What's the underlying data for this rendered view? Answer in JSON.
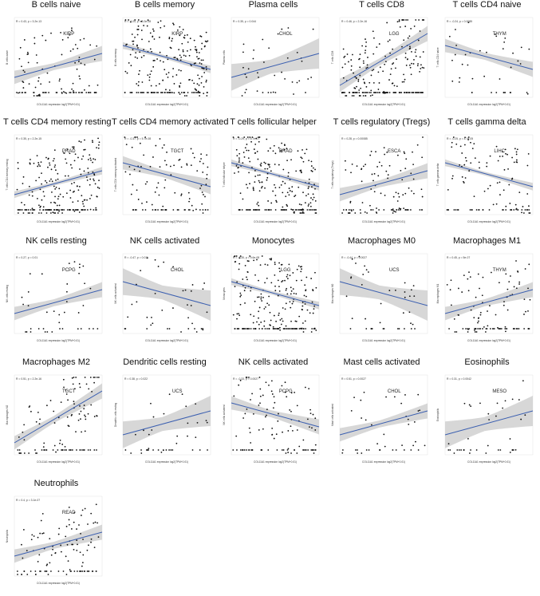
{
  "chart_data": [
    {
      "type": "scatter",
      "title": "B cells naive",
      "stat": "R = 0.43, p = 3.2e-13",
      "cancer": "KIRP",
      "xlabel": "COL11A1 expression log2(TPM+0.01)",
      "ylabel": "B cells naive",
      "slope": "pos",
      "band": "mid",
      "dots": "mid"
    },
    {
      "type": "scatter",
      "title": "B cells memory",
      "stat": "R = -0.20, p = 3.3e-08",
      "cancer": "KIRP",
      "xlabel": "COL11A1 expression log2(TPM+0.01)",
      "ylabel": "B cells memory",
      "slope": "neg",
      "band": "narrow",
      "dots": "many"
    },
    {
      "type": "scatter",
      "title": "Plasma cells",
      "stat": "R = 0.35, p = 0.044",
      "cancer": "CHOL",
      "xlabel": "COL11A1 expression log2(TPM+0.01)",
      "ylabel": "Plasma cells",
      "slope": "pos",
      "band": "wide",
      "dots": "few"
    },
    {
      "type": "scatter",
      "title": "T cells CD8",
      "stat": "R = 0.46, p = 2.2e-16",
      "cancer": "LGG",
      "xlabel": "COL11A1 expression log2(TPM+0.01)",
      "ylabel": "T cells CD8",
      "slope": "steep",
      "band": "mid",
      "dots": "many"
    },
    {
      "type": "scatter",
      "title": "T cells CD4 naive",
      "stat": "R = -0.24, p = 0.0085",
      "cancer": "THYM",
      "xlabel": "COL11A1 expression log2(TPM+0.01)",
      "ylabel": "T cells CD4 naive",
      "slope": "neg",
      "band": "mid",
      "dots": "few"
    },
    {
      "type": "scatter",
      "title": "T cells CD4 memory resting",
      "stat": "R = 0.35, p = 2.2e-15",
      "cancer": "PRAD",
      "xlabel": "COL11A1 expression log2(TPM+0.01)",
      "ylabel": "T cells CD4 memory resting",
      "slope": "pos",
      "band": "narrow",
      "dots": "many"
    },
    {
      "type": "scatter",
      "title": "T cells CD4 memory activated",
      "stat": "R = -0.37, p = 5.7e-08",
      "cancer": "TGCT",
      "xlabel": "COL11A1 expression log2(TPM+0.01)",
      "ylabel": "T cells CD4 memory activated",
      "slope": "neg",
      "band": "mid",
      "dots": "mid"
    },
    {
      "type": "scatter",
      "title": "T cells follicular helper",
      "stat": "R = -0.29, p = 5.7e-07",
      "cancer": "PRAD",
      "xlabel": "COL11A1 expression log2(TPM+0.01)",
      "ylabel": "T cells follicular helper",
      "slope": "neg",
      "band": "narrow",
      "dots": "many"
    },
    {
      "type": "scatter",
      "title": "T cells regulatory (Tregs)",
      "stat": "R = 0.28, p = 0.00085",
      "cancer": "ESCA",
      "xlabel": "COL11A1 expression log2(TPM+0.01)",
      "ylabel": "T cells regulatory (Tregs)",
      "slope": "pos",
      "band": "mid",
      "dots": "mid"
    },
    {
      "type": "scatter",
      "title": "T cells gamma delta",
      "stat": "R = -0.25, p = 4.7e-05",
      "cancer": "LIHC",
      "xlabel": "COL11A1 expression log2(TPM+0.01)",
      "ylabel": "T cells gamma delta",
      "slope": "neg",
      "band": "narrow",
      "dots": "mid"
    },
    {
      "type": "scatter",
      "title": "NK cells resting",
      "stat": "R = 0.27, p = 0.01",
      "cancer": "PCPG",
      "xlabel": "COL11A1 expression log2(TPM+0.01)",
      "ylabel": "NK cells resting",
      "slope": "pos",
      "band": "mid",
      "dots": "few"
    },
    {
      "type": "scatter",
      "title": "NK cells activated",
      "stat": "R = -0.47, p = 0.011",
      "cancer": "CHOL",
      "xlabel": "COL11A1 expression log2(TPM+0.01)",
      "ylabel": "NK cells activated",
      "slope": "neg",
      "band": "wide",
      "dots": "few"
    },
    {
      "type": "scatter",
      "title": "Monocytes",
      "stat": "R = -0.35, p = 9.6e-08",
      "cancer": "LGG",
      "xlabel": "COL11A1 expression log2(TPM+0.01)",
      "ylabel": "Monocytes",
      "slope": "neg",
      "band": "narrow",
      "dots": "many"
    },
    {
      "type": "scatter",
      "title": "Macrophages M0",
      "stat": "R = -0.44, p = 0.0027",
      "cancer": "UCS",
      "xlabel": "COL11A1 expression log2(TPM+0.01)",
      "ylabel": "Macrophages M0",
      "slope": "neg",
      "band": "wide",
      "dots": "few"
    },
    {
      "type": "scatter",
      "title": "Macrophages M1",
      "stat": "R = 0.45, p = 5e-07",
      "cancer": "THYM",
      "xlabel": "COL11A1 expression log2(TPM+0.01)",
      "ylabel": "Macrophages M1",
      "slope": "pos",
      "band": "mid",
      "dots": "mid"
    },
    {
      "type": "scatter",
      "title": "Macrophages M2",
      "stat": "R = 0.51, p = 2.2e-16",
      "cancer": "TGCT",
      "xlabel": "COL11A1 expression log2(TPM+0.01)",
      "ylabel": "Macrophages M2",
      "slope": "steep",
      "band": "mid",
      "dots": "mid"
    },
    {
      "type": "scatter",
      "title": "Dendritic cells resting",
      "stat": "R = 0.38, p = 0.022",
      "cancer": "UCS",
      "xlabel": "COL11A1 expression log2(TPM+0.01)",
      "ylabel": "Dendritic cells resting",
      "slope": "pos",
      "band": "wide",
      "dots": "few"
    },
    {
      "type": "scatter",
      "title": "NK cells activated",
      "stat": "R = -0.33, p = 0.0027",
      "cancer": "PCPG",
      "xlabel": "COL11A1 expression log2(TPM+0.01)",
      "ylabel": "NK cells activated",
      "slope": "neg",
      "band": "mid",
      "dots": "mid"
    },
    {
      "type": "scatter",
      "title": "Mast cells activated",
      "stat": "R = 0.51, p = 0.0027",
      "cancer": "CHOL",
      "xlabel": "COL11A1 expression log2(TPM+0.01)",
      "ylabel": "Mast cells activated",
      "slope": "pos",
      "band": "mid",
      "dots": "few"
    },
    {
      "type": "scatter",
      "title": "Eosinophils",
      "stat": "R = 0.31, p = 0.0042",
      "cancer": "MESO",
      "xlabel": "COL11A1 expression log2(TPM+0.01)",
      "ylabel": "Eosinophils",
      "slope": "pos",
      "band": "wide",
      "dots": "few"
    },
    {
      "type": "scatter",
      "title": "Neutrophils",
      "stat": "R = 0.4, p = 3.1e-07",
      "cancer": "READ",
      "xlabel": "COL11A1 expression log2(TPM+0.01)",
      "ylabel": "Neutrophils",
      "slope": "pos",
      "band": "mid",
      "dots": "mid"
    }
  ],
  "colors": {
    "line": "#3b5fb0",
    "band": "#c9c9c9",
    "point": "#111111",
    "frame": "#dddddd"
  }
}
